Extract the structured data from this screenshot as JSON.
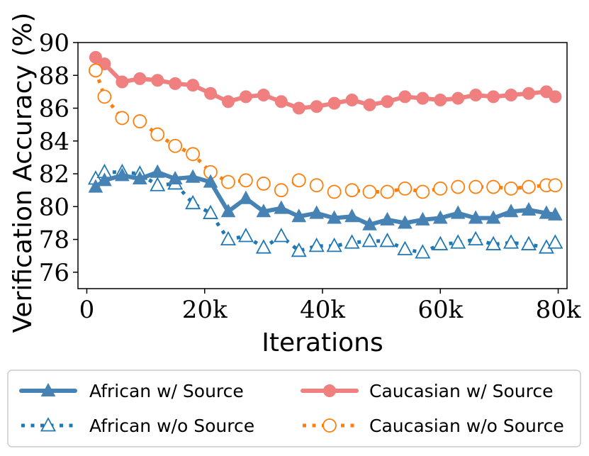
{
  "chart_data": {
    "type": "line",
    "xlabel": "Iterations",
    "ylabel": "Verification Accuracy (%)",
    "xlim": [
      -1500,
      81500
    ],
    "ylim": [
      75,
      90
    ],
    "x_ticks": [
      0,
      20000,
      40000,
      60000,
      80000
    ],
    "x_tick_labels": [
      "0",
      "20k",
      "40k",
      "60k",
      "80k"
    ],
    "y_ticks": [
      76,
      78,
      80,
      82,
      84,
      86,
      88,
      90
    ],
    "y_tick_labels": [
      "76",
      "78",
      "80",
      "82",
      "84",
      "86",
      "88",
      "90"
    ],
    "grid": false,
    "legend_position": "bottom, outside plot, 2 columns",
    "x": [
      1500,
      3000,
      6000,
      9000,
      12000,
      15000,
      18000,
      21000,
      24000,
      27000,
      30000,
      33000,
      36000,
      39000,
      42000,
      45000,
      48000,
      51000,
      54000,
      57000,
      60000,
      63000,
      66000,
      69000,
      72000,
      75000,
      78000,
      79500
    ],
    "series": [
      {
        "name": "African w/ Source",
        "color": "#4682b4",
        "linestyle": "solid",
        "marker": "filled-triangle",
        "values": [
          81.2,
          81.6,
          81.9,
          81.7,
          82.1,
          81.7,
          81.8,
          81.5,
          79.7,
          80.5,
          79.7,
          79.9,
          79.4,
          79.6,
          79.3,
          79.4,
          78.9,
          79.2,
          79.0,
          79.2,
          79.3,
          79.6,
          79.3,
          79.3,
          79.7,
          79.8,
          79.6,
          79.5
        ]
      },
      {
        "name": "Caucasian w/ Source",
        "color": "#f07f7f",
        "linestyle": "solid",
        "marker": "filled-circle",
        "values": [
          89.1,
          88.7,
          87.6,
          87.8,
          87.7,
          87.5,
          87.4,
          86.9,
          86.4,
          86.7,
          86.8,
          86.4,
          86.0,
          86.1,
          86.3,
          86.5,
          86.2,
          86.4,
          86.7,
          86.6,
          86.5,
          86.6,
          86.8,
          86.7,
          86.8,
          86.9,
          87.0,
          86.7
        ]
      },
      {
        "name": "African w/o Source",
        "color": "#1f77b4",
        "linestyle": "dotted",
        "marker": "hollow-triangle",
        "values": [
          81.7,
          82.1,
          82.1,
          82.0,
          81.3,
          81.4,
          80.2,
          79.6,
          78.0,
          78.2,
          77.5,
          78.2,
          77.3,
          77.6,
          77.6,
          77.8,
          77.9,
          77.9,
          77.4,
          77.2,
          77.7,
          77.8,
          78.0,
          77.7,
          77.8,
          77.7,
          77.5,
          77.8
        ]
      },
      {
        "name": "Caucasian w/o Source",
        "color": "#ff7f0e",
        "linestyle": "dotted",
        "marker": "hollow-circle",
        "values": [
          88.3,
          86.7,
          85.4,
          85.2,
          84.4,
          83.7,
          83.2,
          82.1,
          81.5,
          81.6,
          81.4,
          81.0,
          81.6,
          81.3,
          80.9,
          81.0,
          80.9,
          80.9,
          81.1,
          80.9,
          81.1,
          81.2,
          81.2,
          81.2,
          81.1,
          81.2,
          81.3,
          81.3
        ]
      }
    ]
  }
}
